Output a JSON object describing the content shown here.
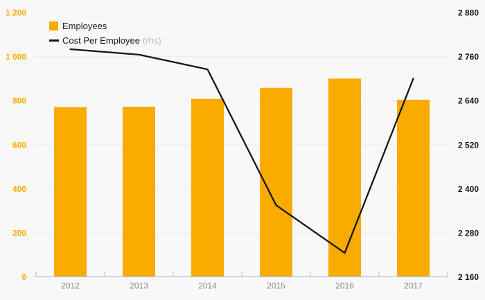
{
  "chart_data": {
    "type": "combo",
    "title": "",
    "categories": [
      "2012",
      "2013",
      "2014",
      "2015",
      "2016",
      "2017"
    ],
    "series": [
      {
        "name": "Employees",
        "type": "bar",
        "axis": "left",
        "color": "#F9AB00",
        "values": [
          770,
          772,
          808,
          858,
          900,
          804
        ]
      },
      {
        "name": "Cost Per Employee",
        "type": "line",
        "axis": "right",
        "color": "#151515",
        "values": [
          2780,
          2765,
          2725,
          2355,
          2225,
          2700
        ]
      }
    ],
    "left_axis": {
      "min": 0,
      "max": 1200,
      "step": 200,
      "tick_labels": [
        "0",
        "200",
        "400",
        "600",
        "800",
        "1 000",
        "1 200"
      ],
      "label_color": "#F9AB00"
    },
    "right_axis": {
      "min": 2160,
      "max": 2880,
      "step": 120,
      "tick_labels": [
        "2 160",
        "2 280",
        "2 400",
        "2 520",
        "2 640",
        "2 760",
        "2 880"
      ],
      "label_color": "#141414"
    },
    "x_axis": {
      "labels": [
        "2012",
        "2013",
        "2014",
        "2015",
        "2016",
        "2017"
      ],
      "label_color": "#8a8a8a",
      "line_color": "#b7c3d9"
    },
    "legend": {
      "items": [
        {
          "label": "Employees",
          "suffix": "",
          "swatch": "square",
          "swatch_color": "#F9AB00"
        },
        {
          "label": "Cost Per Employee",
          "suffix": "(rhs)",
          "swatch": "line",
          "swatch_color": "#151515"
        }
      ]
    },
    "grid": true,
    "gridline_color": "#ececec",
    "background": "#f8f8f8"
  }
}
